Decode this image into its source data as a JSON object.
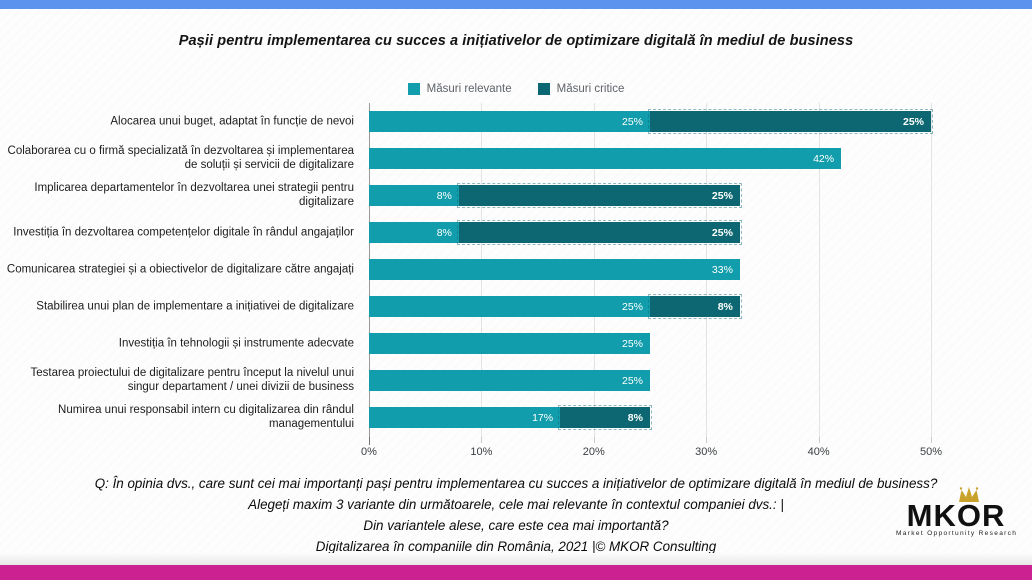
{
  "page": {
    "top_accent_color": "#5b93ee",
    "bottom_accent_color": "#cb2191",
    "background_color": "#fdfdfd"
  },
  "title": "Pașii pentru implementarea cu succes a inițiativelor de optimizare digitală în mediul de business",
  "legend": [
    {
      "label": "Măsuri relevante",
      "color": "#119dab"
    },
    {
      "label": "Măsuri critice",
      "color": "#0c6772"
    }
  ],
  "chart_data": {
    "type": "bar",
    "orientation": "horizontal",
    "stacked": true,
    "title": "Pașii pentru implementarea cu succes a inițiativelor de optimizare digitală în mediul de business",
    "legend_position": "top",
    "grid": true,
    "value_suffix": "%",
    "xlim": [
      0,
      58
    ],
    "x_ticks": [
      {
        "label": "0%",
        "value": 0
      },
      {
        "label": "10%",
        "value": 10
      },
      {
        "label": "20%",
        "value": 20
      },
      {
        "label": "30%",
        "value": 30
      },
      {
        "label": "40%",
        "value": 40
      },
      {
        "label": "50%",
        "value": 50
      }
    ],
    "categories": [
      "Alocarea unui buget, adaptat în funcție de nevoi",
      "Colaborarea cu o firmă specializată în dezvoltarea și implementarea de soluții și servicii de digitalizare",
      "Implicarea departamentelor în dezvoltarea unei strategii pentru digitalizare",
      "Investiția în dezvoltarea competențelor digitale în rândul angajaților",
      "Comunicarea strategiei și a obiectivelor de digitalizare către angajați",
      "Stabilirea unui plan de implementare a inițiativei de digitalizare",
      "Investiția în tehnologii și instrumente adecvate",
      "Testarea proiectului de digitalizare pentru început la nivelul unui singur departament / unei divizii de business",
      "Numirea unui responsabil intern cu digitalizarea din rândul managementului"
    ],
    "series": [
      {
        "name": "Măsuri relevante",
        "color": "#119dab",
        "values": [
          25,
          42,
          8,
          8,
          33,
          25,
          25,
          25,
          17
        ]
      },
      {
        "name": "Măsuri critice",
        "color": "#0c6772",
        "values": [
          25,
          0,
          25,
          25,
          0,
          8,
          0,
          0,
          8
        ]
      }
    ]
  },
  "footer": {
    "line1": "Q: În opinia dvs., care sunt cei mai importanți pași pentru implementarea cu succes a inițiativelor de optimizare digitală în mediul de business?",
    "line2": "Alegeți maxim 3 variante din următoarele, cele mai relevante în contextul companiei dvs.: |",
    "line3": "Din variantele alese, care este cea mai importantă?",
    "line4": "Digitalizarea în companiile din România, 2021 |© MKOR Consulting"
  },
  "logo": {
    "text_left": "MK",
    "text_o": "O",
    "text_right": "R",
    "subtext": "Market Opportunity Research",
    "crown_color": "#c9a22b"
  }
}
